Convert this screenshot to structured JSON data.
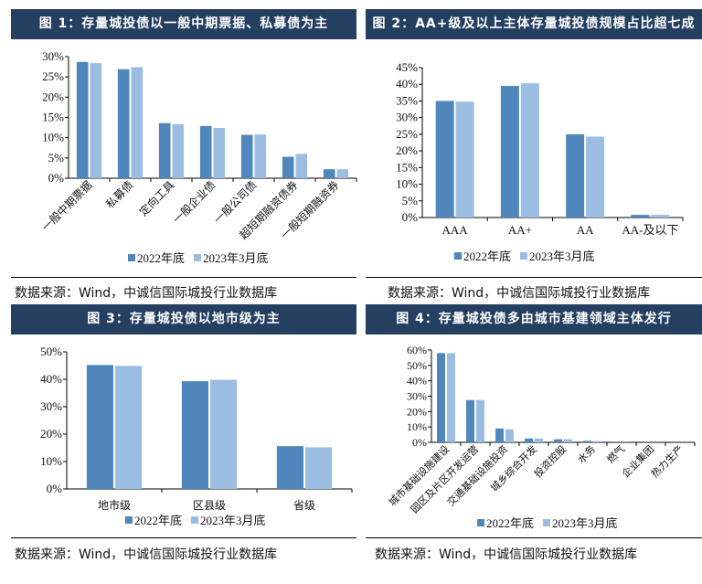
{
  "colors": {
    "header": "#243f60",
    "series_2022": "#4f86bb",
    "series_2023": "#9cbde2"
  },
  "source_text": "数据来源：Wind，中诚信国际城投行业数据库",
  "chart_data": [
    {
      "type": "bar",
      "title": "图 1：存量城投债以一般中期票据、私募债为主",
      "categories": [
        "一般中期票据",
        "私募债",
        "定向工具",
        "一般企业债",
        "一般公司债",
        "超短期融资债券",
        "一般短期融资券"
      ],
      "series": [
        {
          "name": "2022年底",
          "values": [
            28.7,
            26.9,
            13.6,
            12.9,
            10.7,
            5.3,
            2.2
          ]
        },
        {
          "name": "2023年3月底",
          "values": [
            28.4,
            27.4,
            13.3,
            12.4,
            10.8,
            6.0,
            2.2
          ]
        }
      ],
      "ylim": [
        0,
        30
      ],
      "yticks": [
        "0%",
        "5%",
        "10%",
        "15%",
        "20%",
        "25%",
        "30%"
      ],
      "ystep": 5,
      "label_rotation": -45,
      "legend": "bottom",
      "grid": false
    },
    {
      "type": "bar",
      "title": "图 2：AA+级及以上主体存量城投债规模占比超七成",
      "categories": [
        "AAA",
        "AA+",
        "AA",
        "AA-及以下"
      ],
      "series": [
        {
          "name": "2022年底",
          "values": [
            35.0,
            39.5,
            25.0,
            0.8
          ]
        },
        {
          "name": "2023年3月底",
          "values": [
            34.8,
            40.3,
            24.3,
            0.8
          ]
        }
      ],
      "ylim": [
        0,
        45
      ],
      "yticks": [
        "0%",
        "5%",
        "10%",
        "15%",
        "20%",
        "25%",
        "30%",
        "35%",
        "40%",
        "45%"
      ],
      "ystep": 5,
      "label_rotation": 0,
      "legend": "bottom",
      "grid": false
    },
    {
      "type": "bar",
      "title": "图 3：存量城投债以地市级为主",
      "categories": [
        "地市级",
        "区县级",
        "省级"
      ],
      "series": [
        {
          "name": "2022年底",
          "values": [
            45.2,
            39.3,
            15.6
          ]
        },
        {
          "name": "2023年3月底",
          "values": [
            44.9,
            39.8,
            15.2
          ]
        }
      ],
      "ylim": [
        0,
        50
      ],
      "yticks": [
        "0%",
        "10%",
        "20%",
        "30%",
        "40%",
        "50%"
      ],
      "ystep": 10,
      "label_rotation": 0,
      "legend": "bottom",
      "grid": false
    },
    {
      "type": "bar",
      "title": "图 4：存量城投债多由城市基建领域主体发行",
      "categories": [
        "城市基础设施建设",
        "园区及片区开发运营",
        "交通基础设施投资",
        "城乡综合开发",
        "投资控股",
        "水务",
        "燃气",
        "企业集团",
        "热力生产"
      ],
      "series": [
        {
          "name": "2022年底",
          "values": [
            58.0,
            27.5,
            9.0,
            2.5,
            2.0,
            1.0,
            0.1,
            0.05,
            0.05
          ]
        },
        {
          "name": "2023年3月底",
          "values": [
            58.0,
            27.5,
            8.5,
            2.5,
            2.0,
            0.8,
            0.1,
            0.05,
            0.05
          ]
        }
      ],
      "ylim": [
        0,
        60
      ],
      "yticks": [
        "0%",
        "10%",
        "20%",
        "30%",
        "40%",
        "50%",
        "60%"
      ],
      "ystep": 10,
      "label_rotation": -45,
      "legend": "bottom",
      "grid": false
    }
  ]
}
